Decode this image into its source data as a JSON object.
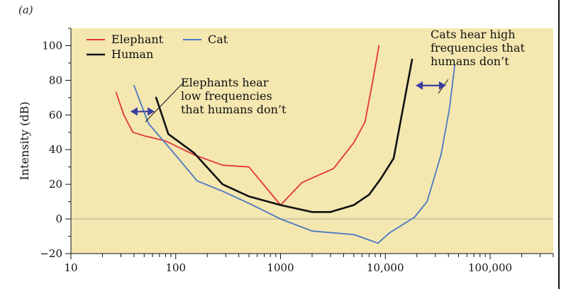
{
  "panel_label": "(a)",
  "colors": {
    "background": "#f4e7b0",
    "elephant": "#e2363a",
    "human": "#111111",
    "cat": "#4a78c2",
    "arrow": "#3b3fa0",
    "zero_line": "#b5b09a"
  },
  "chart_data": {
    "type": "line",
    "x_scale": "log",
    "xlim": [
      10,
      400000
    ],
    "ylim": [
      -20,
      110
    ],
    "xlabel": "",
    "ylabel": "Intensity (dB)",
    "x_ticks": [
      10,
      100,
      1000,
      10000,
      100000
    ],
    "x_tick_labels": [
      "10",
      "100",
      "1000",
      "10,000",
      "100,000"
    ],
    "y_ticks": [
      -20,
      0,
      20,
      40,
      60,
      80,
      100
    ],
    "y_tick_labels": [
      "−20",
      "0",
      "20",
      "40",
      "60",
      "80",
      "100"
    ],
    "grid": false,
    "legend_position": "top-left",
    "series": [
      {
        "name": "Elephant",
        "x": [
          27,
          32,
          39,
          50,
          80,
          150,
          280,
          500,
          1000,
          1600,
          3200,
          5000,
          6400,
          7600,
          8700
        ],
        "y": [
          73,
          60,
          50,
          48,
          45,
          37,
          31,
          30,
          8,
          21,
          29,
          44,
          56,
          80,
          100
        ]
      },
      {
        "name": "Human",
        "x": [
          65,
          85,
          150,
          280,
          500,
          1000,
          2000,
          3000,
          5000,
          7000,
          9000,
          12000,
          18000
        ],
        "y": [
          70,
          49,
          38,
          20,
          13,
          8,
          4,
          4,
          8,
          14,
          23,
          35,
          92
        ]
      },
      {
        "name": "Cat",
        "x": [
          40,
          55,
          90,
          160,
          280,
          500,
          1000,
          2000,
          5000,
          8500,
          11000,
          19000,
          25000,
          34000,
          41000,
          46000
        ],
        "y": [
          77,
          55,
          40,
          22,
          16,
          9,
          0,
          -7,
          -9,
          -14,
          -8,
          1,
          10,
          37,
          64,
          89
        ]
      }
    ],
    "annotations": [
      {
        "id": "elephant-note",
        "lines": [
          "Elephants hear",
          "low frequencies",
          "that humans don’t"
        ],
        "arrow_x": [
          37,
          63
        ],
        "arrow_y": 62
      },
      {
        "id": "cat-note",
        "lines": [
          "Cats hear high",
          "frequencies that",
          "humans don’t"
        ],
        "arrow_x": [
          19500,
          38000
        ],
        "arrow_y": 77
      }
    ]
  }
}
